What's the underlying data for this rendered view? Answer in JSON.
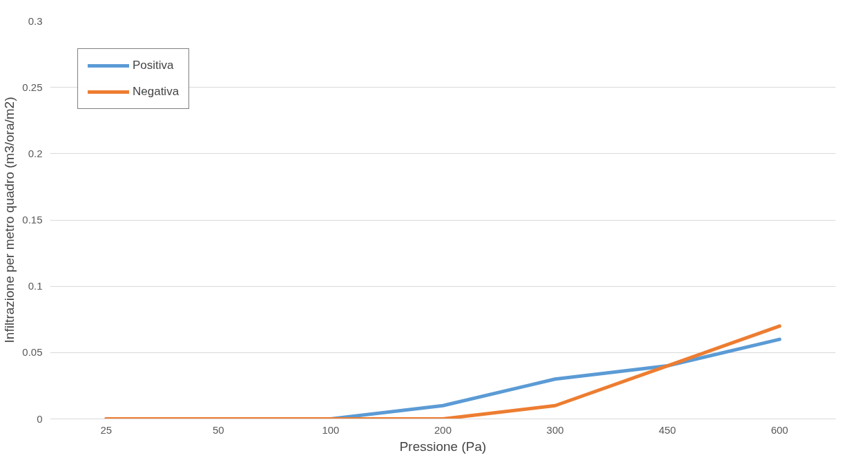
{
  "chart_data": {
    "type": "line",
    "xlabel": "Pressione (Pa)",
    "ylabel": "Infiltrazione per metro quadro (m3/ora/m2)",
    "categories": [
      "25",
      "50",
      "100",
      "200",
      "300",
      "450",
      "600"
    ],
    "series": [
      {
        "name": "Positiva",
        "color": "#5b9bd5",
        "values": [
          0,
          0,
          0,
          0.01,
          0.03,
          0.04,
          0.06
        ]
      },
      {
        "name": "Negativa",
        "color": "#ed7d31",
        "values": [
          0,
          0,
          0,
          0,
          0.01,
          0.04,
          0.07
        ]
      }
    ],
    "ylim": [
      0,
      0.3
    ],
    "yticks": [
      0,
      0.05,
      0.1,
      0.15,
      0.2,
      0.25,
      0.3
    ],
    "grid": "y",
    "legend": "top left",
    "marker": "none",
    "line_style": "solid"
  }
}
